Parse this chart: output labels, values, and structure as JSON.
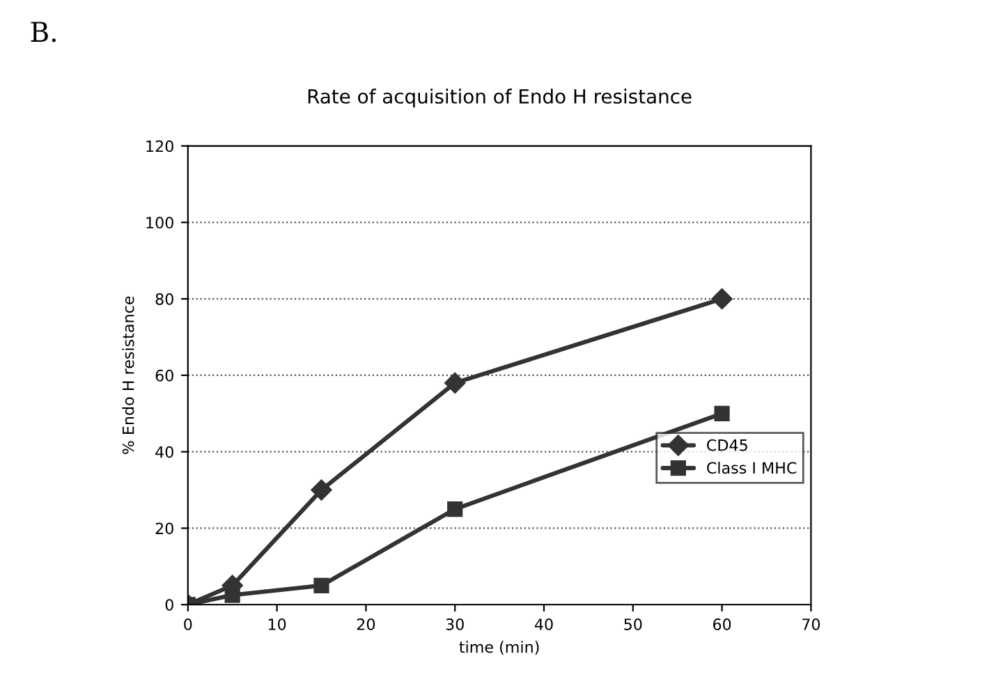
{
  "chart_data": {
    "type": "line",
    "title": "Rate of acquisition of Endo H resistance",
    "xlabel": "time (min)",
    "ylabel": "% Endo H resistance",
    "annotations": [
      "B."
    ],
    "x": [
      0,
      5,
      15,
      30,
      60
    ],
    "series": [
      {
        "name": "CD45",
        "color": "#333333",
        "marker": "diamond",
        "values": [
          0,
          5,
          30,
          58,
          80
        ]
      },
      {
        "name": "Class I MHC",
        "color": "#333333",
        "marker": "square",
        "values": [
          0,
          2.5,
          5,
          25,
          50
        ]
      }
    ],
    "xlim": [
      0,
      70
    ],
    "xticks": [
      0,
      10,
      20,
      30,
      40,
      50,
      60,
      70
    ],
    "ylim": [
      0,
      120
    ],
    "yticks": [
      0,
      20,
      40,
      60,
      80,
      100,
      120
    ],
    "grid": "y",
    "legend": "right",
    "line_style": "solid"
  }
}
